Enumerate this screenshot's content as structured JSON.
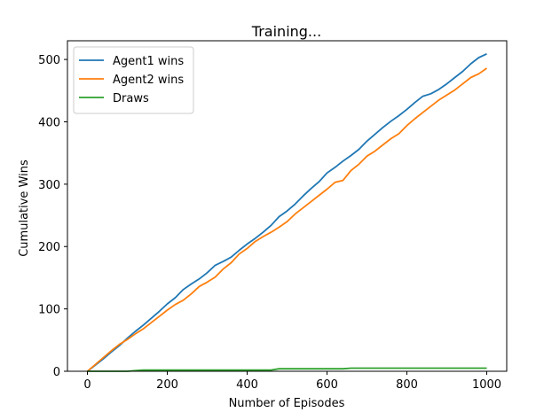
{
  "chart_data": {
    "type": "line",
    "title": "Training...",
    "xlabel": "Number of Episodes",
    "ylabel": "Cumulative Wins",
    "xlim": [
      -50,
      1050
    ],
    "ylim": [
      0,
      530
    ],
    "xticks": [
      0,
      200,
      400,
      600,
      800,
      1000
    ],
    "yticks": [
      0,
      100,
      200,
      300,
      400,
      500
    ],
    "grid": false,
    "legend": "top-left",
    "series": [
      {
        "name": "Agent1 wins",
        "color": "#1f77b4",
        "x": [
          0,
          20,
          40,
          60,
          80,
          100,
          120,
          140,
          160,
          180,
          200,
          220,
          240,
          260,
          280,
          300,
          320,
          340,
          360,
          380,
          400,
          420,
          440,
          460,
          480,
          500,
          520,
          540,
          560,
          580,
          600,
          620,
          640,
          660,
          680,
          700,
          720,
          740,
          760,
          780,
          800,
          820,
          840,
          860,
          880,
          900,
          920,
          940,
          960,
          980,
          1000
        ],
        "y": [
          0,
          10,
          20,
          31,
          41,
          53,
          64,
          74,
          85,
          96,
          108,
          118,
          131,
          140,
          148,
          158,
          170,
          176,
          183,
          194,
          204,
          213,
          223,
          234,
          248,
          257,
          268,
          281,
          293,
          304,
          318,
          327,
          337,
          346,
          356,
          369,
          380,
          391,
          401,
          410,
          420,
          431,
          441,
          445,
          452,
          461,
          471,
          481,
          493,
          503,
          509
        ]
      },
      {
        "name": "Agent2 wins",
        "color": "#ff7f0e",
        "x": [
          0,
          20,
          40,
          60,
          80,
          100,
          120,
          140,
          160,
          180,
          200,
          220,
          240,
          260,
          280,
          300,
          320,
          340,
          360,
          380,
          400,
          420,
          440,
          460,
          480,
          500,
          520,
          540,
          560,
          580,
          600,
          620,
          640,
          660,
          680,
          700,
          720,
          740,
          760,
          780,
          800,
          820,
          840,
          860,
          880,
          900,
          920,
          940,
          960,
          980,
          1000
        ],
        "y": [
          0,
          11,
          22,
          33,
          43,
          51,
          60,
          68,
          78,
          88,
          98,
          107,
          114,
          124,
          136,
          143,
          151,
          164,
          174,
          188,
          197,
          208,
          216,
          223,
          231,
          240,
          252,
          262,
          272,
          282,
          292,
          303,
          306,
          322,
          332,
          345,
          353,
          363,
          373,
          381,
          394,
          405,
          415,
          425,
          435,
          443,
          451,
          461,
          471,
          477,
          486
        ]
      },
      {
        "name": "Draws",
        "color": "#2ca02c",
        "x": [
          0,
          100,
          120,
          140,
          300,
          460,
          480,
          500,
          640,
          660,
          680,
          800,
          1000
        ],
        "y": [
          0,
          0,
          1,
          2,
          2,
          2,
          4,
          4,
          4,
          5,
          5,
          5,
          5
        ]
      }
    ]
  }
}
